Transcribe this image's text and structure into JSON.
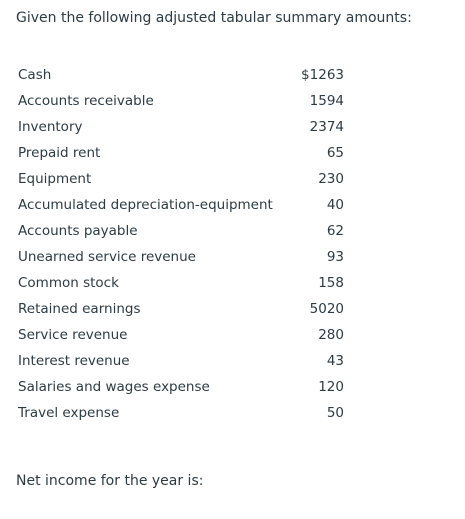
{
  "question": {
    "intro": "Given the following adjusted tabular summary amounts:",
    "prompt": "Net income for the year is:"
  },
  "summary": {
    "rows": [
      {
        "label": "Cash",
        "value": "$1263"
      },
      {
        "label": "Accounts receivable",
        "value": "1594"
      },
      {
        "label": "Inventory",
        "value": "2374"
      },
      {
        "label": "Prepaid rent",
        "value": "65"
      },
      {
        "label": "Equipment",
        "value": "230"
      },
      {
        "label": "Accumulated depreciation-equipment",
        "value": "40"
      },
      {
        "label": "Accounts payable",
        "value": "62"
      },
      {
        "label": "Unearned service revenue",
        "value": "93"
      },
      {
        "label": "Common stock",
        "value": "158"
      },
      {
        "label": "Retained earnings",
        "value": "5020"
      },
      {
        "label": "Service revenue",
        "value": "280"
      },
      {
        "label": "Interest revenue",
        "value": "43"
      },
      {
        "label": "Salaries and wages expense",
        "value": "120"
      },
      {
        "label": "Travel expense",
        "value": "50"
      }
    ]
  }
}
